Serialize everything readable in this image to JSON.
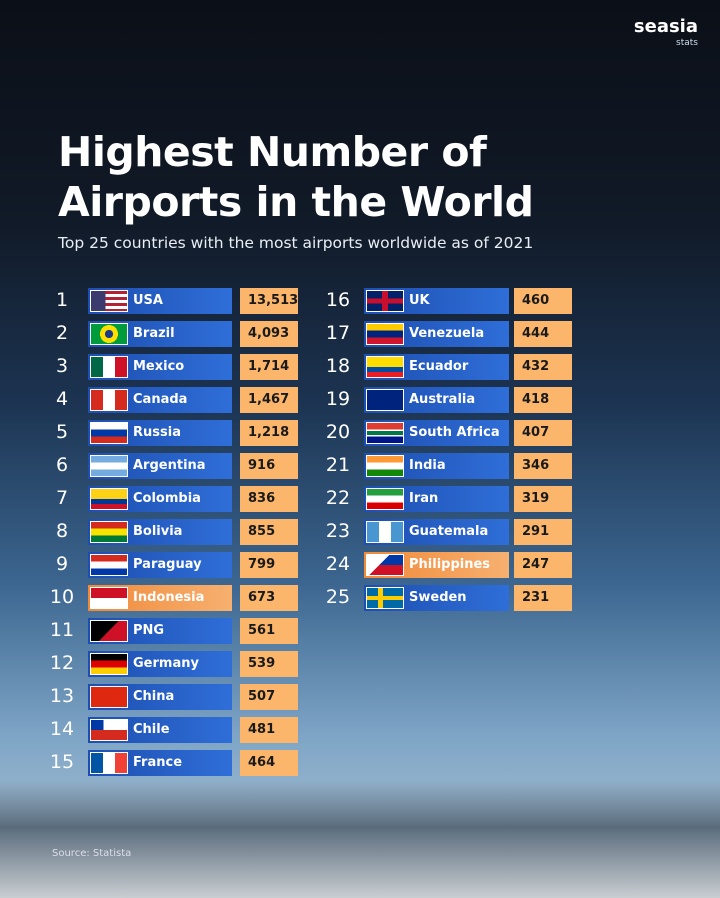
{
  "brand": {
    "name": "seasia",
    "sub": "stats"
  },
  "header": {
    "title_line1": "Highest Number of",
    "title_line2": "Airports in the World",
    "subtitle": "Top 25 countries with the most airports worldwide as of 2021"
  },
  "table": {
    "rows": [
      {
        "rank": 1,
        "country": "USA",
        "airports": "13,513"
      },
      {
        "rank": 2,
        "country": "Brazil",
        "airports": "4,093"
      },
      {
        "rank": 3,
        "country": "Mexico",
        "airports": "1,714"
      },
      {
        "rank": 4,
        "country": "Canada",
        "airports": "1,467"
      },
      {
        "rank": 5,
        "country": "Russia",
        "airports": "1,218"
      },
      {
        "rank": 6,
        "country": "Argentina",
        "airports": "916"
      },
      {
        "rank": 7,
        "country": "Colombia",
        "airports": "836"
      },
      {
        "rank": 8,
        "country": "Bolivia",
        "airports": "855"
      },
      {
        "rank": 9,
        "country": "Paraguay",
        "airports": "799"
      },
      {
        "rank": 10,
        "country": "Indonesia",
        "airports": "673"
      },
      {
        "rank": 11,
        "country": "PNG",
        "airports": "561"
      },
      {
        "rank": 12,
        "country": "Germany",
        "airports": "539"
      },
      {
        "rank": 13,
        "country": "China",
        "airports": "507"
      },
      {
        "rank": 14,
        "country": "Chile",
        "airports": "481"
      },
      {
        "rank": 15,
        "country": "France",
        "airports": "464"
      },
      {
        "rank": 16,
        "country": "UK",
        "airports": "460"
      },
      {
        "rank": 17,
        "country": "Venezuela",
        "airports": "444"
      },
      {
        "rank": 18,
        "country": "Ecuador",
        "airports": "432"
      },
      {
        "rank": 19,
        "country": "Australia",
        "airports": "418"
      },
      {
        "rank": 20,
        "country": "South Africa",
        "airports": "407"
      },
      {
        "rank": 21,
        "country": "India",
        "airports": "346"
      },
      {
        "rank": 22,
        "country": "Iran",
        "airports": "319"
      },
      {
        "rank": 23,
        "country": "Guatemala",
        "airports": "291"
      },
      {
        "rank": 24,
        "country": "Philippines",
        "airports": "247"
      },
      {
        "rank": 25,
        "country": "Sweden",
        "airports": "231"
      }
    ]
  },
  "footer": {
    "source": "Source: Statista"
  }
}
